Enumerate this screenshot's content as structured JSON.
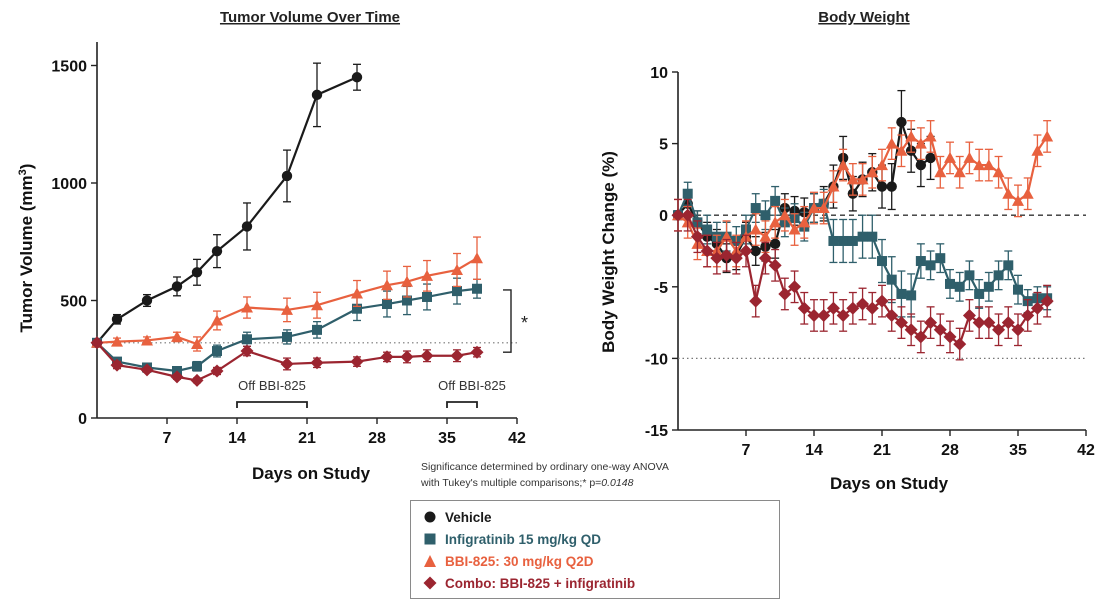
{
  "chart_data": [
    {
      "type": "line",
      "title": "Tumor Volume Over Time",
      "xlabel": "Days on Study",
      "ylabel_main": "Tumor Volume (mm",
      "ylabel_sup": "3",
      "ylabel_end": ")",
      "xlim": [
        0,
        42
      ],
      "ylim": [
        0,
        1600
      ],
      "xticks": [
        7,
        14,
        21,
        28,
        35,
        42
      ],
      "xtick_labels": [
        "7",
        "14",
        "21",
        "28",
        "35",
        "42"
      ],
      "yticks": [
        0,
        500,
        1000,
        1500
      ],
      "ytick_labels": [
        "0",
        "500",
        "1000",
        "1500"
      ],
      "reference_line": 320,
      "off_periods": [
        {
          "label": "Off BBI-825",
          "start": 14,
          "end": 21
        },
        {
          "label": "Off BBI-825",
          "start": 35,
          "end": 38
        }
      ],
      "significance_marker": "*",
      "series": [
        {
          "name": "Vehicle",
          "color": "#1a1a1a",
          "marker": "circle",
          "x": [
            0,
            2,
            5,
            8,
            10,
            12,
            15,
            19,
            22,
            26
          ],
          "y": [
            320,
            420,
            500,
            560,
            620,
            710,
            815,
            1030,
            1375,
            1450
          ],
          "err": [
            15,
            20,
            25,
            40,
            55,
            70,
            100,
            110,
            135,
            55
          ]
        },
        {
          "name": "Infigratinib 15 mg/kg QD",
          "color": "#2f5f6b",
          "marker": "square",
          "x": [
            0,
            2,
            5,
            8,
            10,
            12,
            15,
            19,
            22,
            26,
            29,
            31,
            33,
            36,
            38
          ],
          "y": [
            320,
            240,
            215,
            200,
            220,
            285,
            335,
            345,
            375,
            465,
            485,
            500,
            515,
            540,
            550
          ],
          "err": [
            10,
            15,
            15,
            15,
            20,
            25,
            30,
            30,
            35,
            50,
            55,
            60,
            55,
            55,
            40
          ]
        },
        {
          "name": "BBI-825: 30 mg/kg Q2D",
          "color": "#e8613f",
          "marker": "triangle",
          "x": [
            0,
            2,
            5,
            8,
            10,
            12,
            15,
            19,
            22,
            26,
            29,
            31,
            33,
            36,
            38
          ],
          "y": [
            320,
            325,
            330,
            345,
            315,
            415,
            470,
            460,
            480,
            530,
            565,
            580,
            605,
            630,
            680
          ],
          "err": [
            10,
            15,
            15,
            20,
            30,
            40,
            45,
            50,
            55,
            55,
            60,
            65,
            65,
            70,
            90
          ]
        },
        {
          "name": "Combo: BBI-825 + infigratinib",
          "color": "#9b2530",
          "marker": "diamond",
          "x": [
            0,
            2,
            5,
            8,
            10,
            12,
            15,
            19,
            22,
            26,
            29,
            31,
            33,
            36,
            38
          ],
          "y": [
            320,
            225,
            205,
            175,
            160,
            200,
            285,
            230,
            235,
            240,
            260,
            260,
            265,
            265,
            280
          ],
          "err": [
            10,
            15,
            10,
            10,
            10,
            15,
            20,
            25,
            20,
            20,
            20,
            25,
            25,
            25,
            20
          ]
        }
      ]
    },
    {
      "type": "line",
      "title": "Body Weight",
      "xlabel": "Days on Study",
      "ylabel": "Body Weight Change (%)",
      "xlim": [
        0,
        42
      ],
      "ylim": [
        -15,
        10
      ],
      "xticks": [
        7,
        14,
        21,
        28,
        35,
        42
      ],
      "xtick_labels": [
        "7",
        "14",
        "21",
        "28",
        "35",
        "42"
      ],
      "yticks": [
        -15,
        -10,
        -5,
        0,
        5,
        10
      ],
      "ytick_labels": [
        "-15",
        "-10",
        "-5",
        "0",
        "5",
        "10"
      ],
      "zero_line": 0,
      "reference_line": -10,
      "series": [
        {
          "name": "Vehicle",
          "color": "#1a1a1a",
          "marker": "circle",
          "x": [
            0,
            1,
            2,
            3,
            4,
            5,
            6,
            7,
            8,
            9,
            10,
            11,
            12,
            13,
            14,
            15,
            16,
            17,
            18,
            19,
            20,
            21,
            22,
            23,
            24,
            25,
            26
          ],
          "y": [
            0,
            0.8,
            -0.5,
            -1.5,
            -2.0,
            -3.0,
            -2.8,
            -1.5,
            -2.5,
            -2.2,
            -2.0,
            0.5,
            0.3,
            0.2,
            0.5,
            0.8,
            2.0,
            4.0,
            1.5,
            2.5,
            3.0,
            2.0,
            2.0,
            6.5,
            4.5,
            3.5,
            4.0
          ],
          "err": [
            0.3,
            0.8,
            0.8,
            1.0,
            1.0,
            1.0,
            1.0,
            1.0,
            1.0,
            1.0,
            1.0,
            1.0,
            1.0,
            1.0,
            1.0,
            1.2,
            1.5,
            1.5,
            1.2,
            1.2,
            1.3,
            1.5,
            1.6,
            2.2,
            1.5,
            1.5,
            1.5
          ]
        },
        {
          "name": "Infigratinib 15 mg/kg QD",
          "color": "#2f5f6b",
          "marker": "square",
          "x": [
            0,
            1,
            2,
            3,
            4,
            5,
            6,
            7,
            8,
            9,
            10,
            11,
            12,
            13,
            14,
            15,
            16,
            17,
            18,
            19,
            20,
            21,
            22,
            23,
            24,
            25,
            26,
            27,
            28,
            29,
            30,
            31,
            32,
            33,
            34,
            35,
            36,
            37,
            38
          ],
          "y": [
            0,
            1.5,
            -0.5,
            -1.0,
            -1.5,
            -1.5,
            -1.8,
            -1.0,
            0.5,
            0.0,
            1.0,
            -0.5,
            -0.2,
            -0.8,
            0.5,
            0.8,
            -1.8,
            -1.8,
            -1.8,
            -1.5,
            -1.5,
            -3.2,
            -4.5,
            -5.5,
            -5.6,
            -3.2,
            -3.5,
            -3.0,
            -4.8,
            -5.0,
            -4.2,
            -5.5,
            -5.0,
            -4.2,
            -3.5,
            -5.2,
            -6.0,
            -5.8,
            -5.8
          ],
          "err": [
            0.3,
            0.8,
            0.8,
            1.0,
            1.0,
            1.0,
            1.0,
            1.0,
            1.0,
            1.0,
            1.0,
            1.0,
            1.0,
            1.0,
            1.0,
            1.0,
            1.5,
            1.5,
            1.5,
            1.5,
            1.5,
            1.5,
            1.6,
            1.6,
            1.5,
            1.2,
            1.0,
            1.0,
            1.0,
            1.0,
            1.0,
            1.0,
            1.0,
            1.0,
            1.0,
            1.0,
            0.8,
            0.8,
            0.8
          ]
        },
        {
          "name": "BBI-825: 30 mg/kg Q2D",
          "color": "#e8613f",
          "marker": "triangle",
          "x": [
            0,
            1,
            2,
            3,
            4,
            5,
            6,
            7,
            8,
            9,
            10,
            11,
            12,
            13,
            14,
            15,
            16,
            17,
            18,
            19,
            20,
            21,
            22,
            23,
            24,
            25,
            26,
            27,
            28,
            29,
            30,
            31,
            32,
            33,
            34,
            35,
            36,
            37,
            38
          ],
          "y": [
            0,
            -0.5,
            -2.0,
            -2.5,
            -2.5,
            -1.5,
            -2.5,
            -1.5,
            -1.0,
            -1.5,
            -0.5,
            0.0,
            -1.0,
            -0.5,
            0.5,
            0.5,
            2.0,
            3.5,
            2.5,
            2.5,
            3.0,
            3.5,
            5.0,
            4.5,
            5.5,
            5.0,
            5.5,
            3.0,
            4.0,
            3.0,
            4.0,
            3.5,
            3.5,
            3.0,
            1.5,
            1.0,
            1.5,
            4.5,
            5.5
          ]
        },
        {
          "name": "Combo: BBI-825 + infigratinib",
          "color": "#9b2530",
          "marker": "diamond",
          "x": [
            0,
            1,
            2,
            3,
            4,
            5,
            6,
            7,
            8,
            9,
            10,
            11,
            12,
            13,
            14,
            15,
            16,
            17,
            18,
            19,
            20,
            21,
            22,
            23,
            24,
            25,
            26,
            27,
            28,
            29,
            30,
            31,
            32,
            33,
            34,
            35,
            36,
            37,
            38
          ],
          "y": [
            0,
            0.0,
            -1.5,
            -2.5,
            -3.0,
            -2.8,
            -3.0,
            -2.5,
            -6.0,
            -3.0,
            -3.5,
            -5.5,
            -5.0,
            -6.5,
            -7.0,
            -7.0,
            -6.5,
            -7.0,
            -6.5,
            -6.2,
            -6.5,
            -6.0,
            -7.0,
            -7.5,
            -8.0,
            -8.5,
            -7.5,
            -8.0,
            -8.5,
            -9.0,
            -7.0,
            -7.5,
            -7.5,
            -8.0,
            -7.5,
            -8.0,
            -7.0,
            -6.5,
            -6.0
          ]
        }
      ]
    }
  ],
  "footnote": {
    "line1": "Significance determined by ordinary one-way ANOVA",
    "line2_prefix": "with Tukey's multiple comparisons;* p=",
    "line2_value": "0.0148"
  },
  "legend": {
    "items": [
      {
        "label": "Vehicle",
        "color": "#1a1a1a",
        "marker": "circle",
        "text_color": "#1a1a1a"
      },
      {
        "label": "Infigratinib 15 mg/kg QD",
        "color": "#2f5f6b",
        "marker": "square",
        "text_color": "#2f5f6b"
      },
      {
        "label": "BBI-825: 30 mg/kg Q2D",
        "color": "#e8613f",
        "marker": "triangle",
        "text_color": "#e8613f"
      },
      {
        "label": "Combo: BBI-825 + infigratinib",
        "color": "#9b2530",
        "marker": "diamond",
        "text_color": "#9b2530"
      }
    ]
  }
}
